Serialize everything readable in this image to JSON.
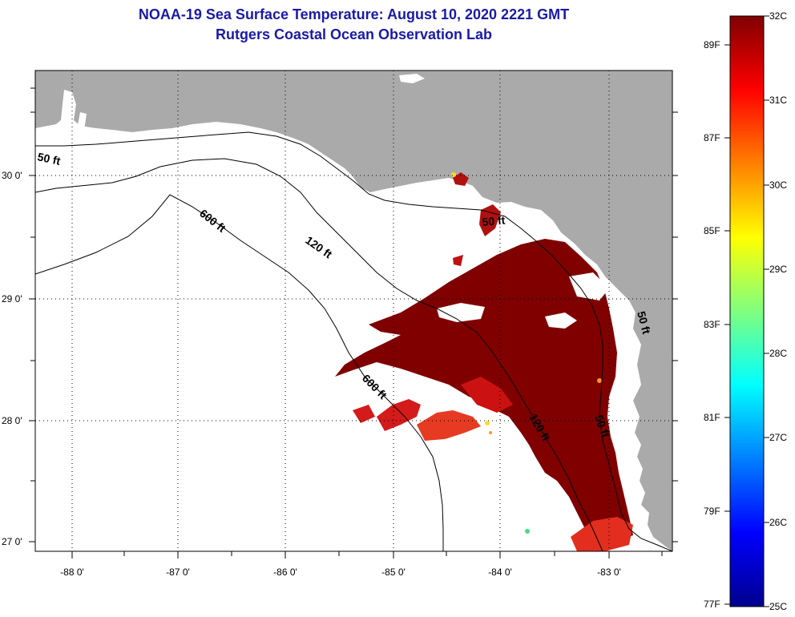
{
  "title": {
    "line1": "NOAA-19 Sea Surface Temperature:  August 10, 2020 2221 GMT",
    "line2": "Rutgers Coastal Ocean Observation Lab"
  },
  "colors": {
    "land": "#aaaaaa",
    "title_text": "#1a1aa6",
    "sst_dark": "#800000",
    "sst_mid": "#cc1111",
    "sst_warm": "#ee3322"
  },
  "map": {
    "lat_ticks": [
      "30 0'",
      "29 0'",
      "28 0'",
      "27 0'"
    ],
    "lon_ticks": [
      "-88 0'",
      "-87 0'",
      "-86 0'",
      "-85 0'",
      "-84 0'",
      "-83 0'"
    ],
    "depth_contours": [
      "50 ft",
      "600 ft",
      "120 ft",
      "50 ft",
      "600 ft",
      "120 ft",
      "50 ft",
      "50 ft"
    ]
  },
  "colorbar": {
    "colormap": "jet",
    "range_c": [
      25,
      32
    ],
    "range_f": [
      77,
      89.6
    ],
    "celsius_labels": [
      "32C",
      "31C",
      "30C",
      "29C",
      "28C",
      "27C",
      "26C",
      "25C"
    ],
    "fahrenheit_labels": [
      "89F",
      "87F",
      "85F",
      "83F",
      "81F",
      "79F",
      "77F"
    ]
  }
}
